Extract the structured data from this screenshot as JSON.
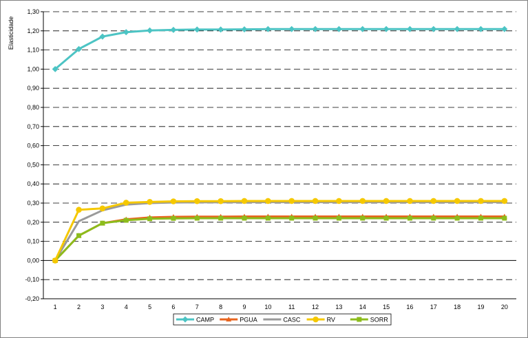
{
  "chart_data": {
    "type": "line",
    "title": "",
    "xlabel": "",
    "ylabel": "Elasticidade",
    "ylim": [
      -0.2,
      1.3
    ],
    "y_ticks": [
      "-0,20",
      "-0,10",
      "0,00",
      "0,10",
      "0,20",
      "0,30",
      "0,40",
      "0,50",
      "0,60",
      "0,70",
      "0,80",
      "0,90",
      "1,00",
      "1,10",
      "1,20",
      "1,30"
    ],
    "x": [
      1,
      2,
      3,
      4,
      5,
      6,
      7,
      8,
      9,
      10,
      11,
      12,
      13,
      14,
      15,
      16,
      17,
      18,
      19,
      20
    ],
    "x_ticks": [
      "1",
      "2",
      "3",
      "4",
      "5",
      "6",
      "7",
      "8",
      "9",
      "10",
      "11",
      "12",
      "13",
      "14",
      "15",
      "16",
      "17",
      "18",
      "19",
      "20"
    ],
    "grid": true,
    "legend_position": "bottom",
    "series": [
      {
        "name": "CAMP",
        "color": "#4cc4c4",
        "marker": "diamond",
        "values": [
          1.0,
          1.105,
          1.17,
          1.193,
          1.202,
          1.205,
          1.207,
          1.207,
          1.208,
          1.209,
          1.209,
          1.209,
          1.209,
          1.209,
          1.209,
          1.209,
          1.209,
          1.209,
          1.209,
          1.209
        ]
      },
      {
        "name": "PGUA",
        "color": "#e8641e",
        "marker": "triangle",
        "values": [
          0.0,
          0.13,
          0.195,
          0.215,
          0.225,
          0.228,
          0.229,
          0.229,
          0.23,
          0.23,
          0.23,
          0.23,
          0.23,
          0.23,
          0.23,
          0.23,
          0.23,
          0.23,
          0.23,
          0.23
        ]
      },
      {
        "name": "CASC",
        "color": "#9a9a9a",
        "marker": "none",
        "values": [
          0.0,
          0.205,
          0.262,
          0.292,
          0.3,
          0.303,
          0.304,
          0.304,
          0.305,
          0.305,
          0.305,
          0.305,
          0.305,
          0.305,
          0.305,
          0.305,
          0.305,
          0.305,
          0.305,
          0.305
        ]
      },
      {
        "name": "RV",
        "color": "#f5c800",
        "marker": "circle",
        "values": [
          0.0,
          0.265,
          0.272,
          0.302,
          0.306,
          0.309,
          0.31,
          0.31,
          0.311,
          0.311,
          0.311,
          0.311,
          0.311,
          0.311,
          0.311,
          0.311,
          0.311,
          0.311,
          0.311,
          0.311
        ]
      },
      {
        "name": "SORR",
        "color": "#8cbc1c",
        "marker": "square",
        "values": [
          0.0,
          0.13,
          0.195,
          0.21,
          0.218,
          0.22,
          0.221,
          0.221,
          0.221,
          0.221,
          0.221,
          0.221,
          0.221,
          0.221,
          0.221,
          0.221,
          0.221,
          0.221,
          0.221,
          0.221
        ]
      }
    ]
  }
}
